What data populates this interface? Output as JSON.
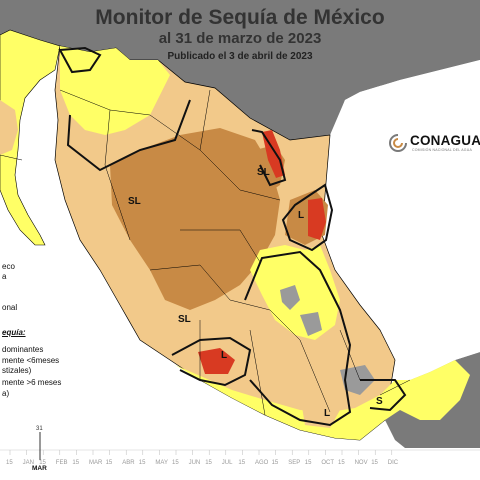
{
  "header": {
    "title": "Monitor de Sequía de México",
    "date_line": "al 31 de marzo de 2023",
    "published": "Publicado el 3 de abril de 2023"
  },
  "logo": {
    "name": "CONAGUA",
    "tagline": "COMISIÓN NACIONAL DEL AGUA"
  },
  "legend": {
    "fragment_1": "eco",
    "fragment_2": "a",
    "fragment_3": "onal",
    "heading_fragment": "equía:",
    "fragment_dominant": "dominantes",
    "fragment_short": "mente <6meses",
    "fragment_short_2": "stizales)",
    "fragment_long": "mente >6 meses",
    "fragment_long_2": "a)"
  },
  "region_labels": [
    "SL",
    "SL",
    "SL",
    "L",
    "L",
    "L",
    "S"
  ],
  "timeline": {
    "current_day": "31",
    "current_month": "MAR",
    "labels": [
      "15",
      "JAN",
      "15",
      "FEB",
      "15",
      "MAR",
      "15",
      "ABR",
      "15",
      "MAY",
      "15",
      "JUN",
      "15",
      "JUL",
      "15",
      "AGO",
      "15",
      "SEP",
      "15",
      "OCT",
      "15",
      "NOV",
      "15",
      "DIC"
    ]
  },
  "colors": {
    "ocean": "#ffffff",
    "land_background": "#7a7a7a",
    "no_drought": "#ffffff",
    "anormalmente_seco": "#ffff66",
    "sequia_moderada": "#f2c98a",
    "sequia_severa": "#c88a45",
    "sequia_extrema": "#d83a22",
    "sequia_excepcional": "#8b1a10"
  }
}
